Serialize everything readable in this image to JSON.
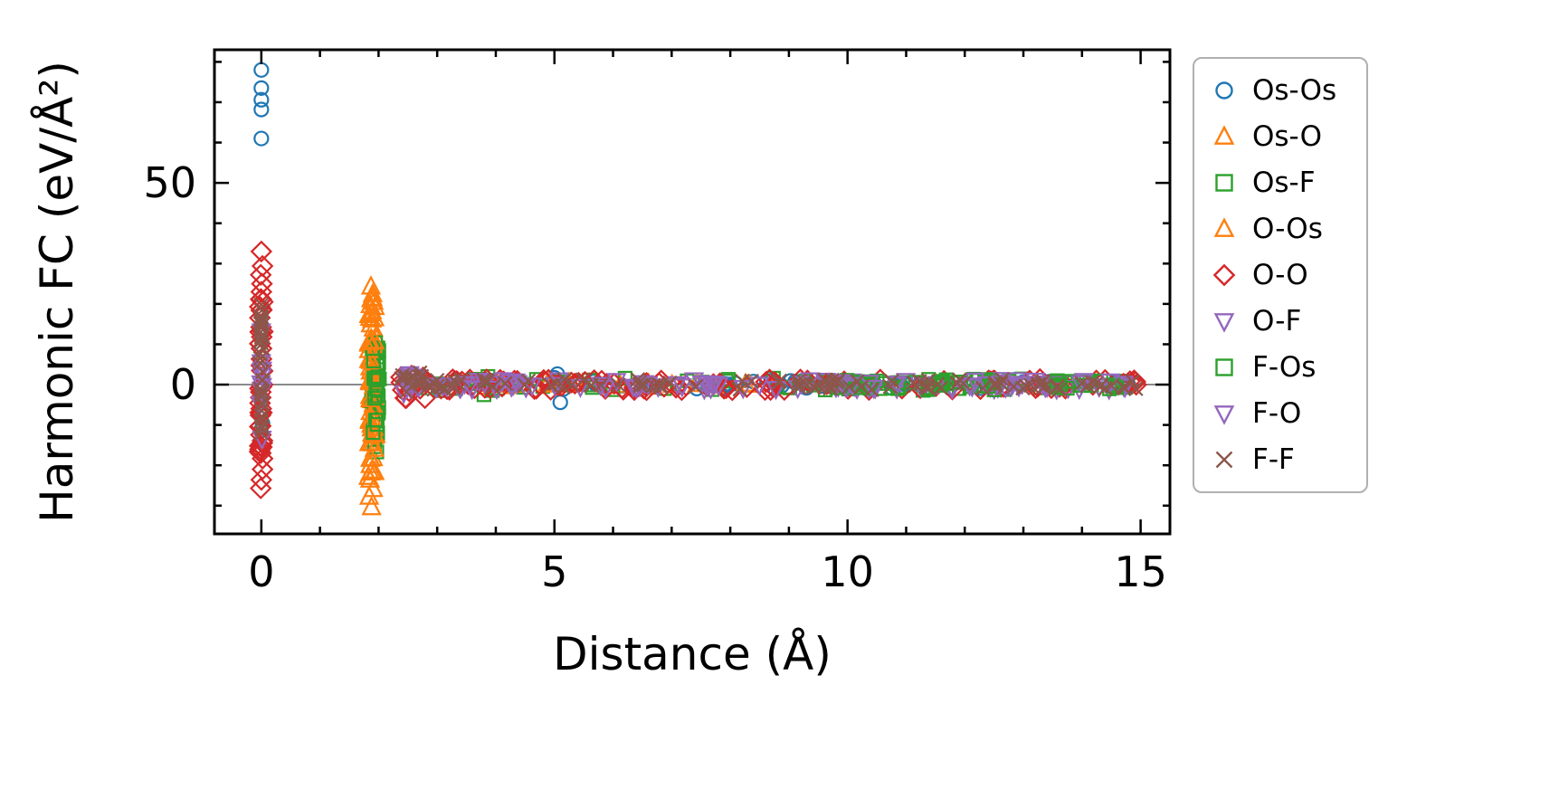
{
  "figure": {
    "background": "#ffffff"
  },
  "chart_data": {
    "type": "scatter",
    "title": "",
    "xlabel": "Distance (Å)",
    "ylabel": "Harmonic FC (eV/Å²)",
    "xlim": [
      -0.8,
      15.5
    ],
    "ylim": [
      -37,
      83
    ],
    "xticks": [
      0,
      5,
      10,
      15
    ],
    "yticks": [
      0,
      50
    ],
    "x_minor_step": 1,
    "y_minor_step": 10,
    "grid": false,
    "zero_line": {
      "y": 0,
      "color": "#8a8a8a"
    },
    "legend_position": "outside-right",
    "series": [
      {
        "name": "Os-Os",
        "marker": "circle",
        "color": "#1f77b4",
        "size": 15,
        "points": [
          [
            0,
            78
          ],
          [
            0,
            73.5
          ],
          [
            0,
            70.6
          ],
          [
            0,
            68.2
          ],
          [
            0,
            61
          ],
          [
            0.02,
            -9.6
          ],
          [
            -0.01,
            -11.4
          ],
          [
            5.05,
            2.6
          ],
          [
            5.1,
            -4.4
          ],
          [
            5.0,
            1.7
          ],
          [
            5.15,
            -1.1
          ],
          [
            14.8,
            -0.6
          ],
          [
            14.55,
            0.4
          ],
          [
            9.3,
            -0.8
          ]
        ],
        "bands": [
          {
            "x0": 4.9,
            "x1": 14.95,
            "y0": -1.1,
            "y1": 1.1,
            "count": 45,
            "seed": 11
          }
        ]
      },
      {
        "name": "Os-O",
        "marker": "triangle-up",
        "color": "#ff7f0e",
        "size": 17,
        "points": [
          [
            1.87,
            24.3
          ],
          [
            1.9,
            22.4
          ],
          [
            1.84,
            -27.8
          ],
          [
            1.88,
            -30.4
          ],
          [
            1.91,
            -25.9
          ]
        ],
        "bands": [
          {
            "x0": 1.82,
            "x1": 1.96,
            "y0": -24,
            "y1": 21,
            "count": 40,
            "seed": 21
          },
          {
            "x0": 3.4,
            "x1": 7.5,
            "y0": -0.7,
            "y1": 0.7,
            "count": 12,
            "seed": 22
          }
        ]
      },
      {
        "name": "Os-F",
        "marker": "square",
        "color": "#2ca02c",
        "size": 14,
        "points": [
          [
            1.95,
            10.4
          ],
          [
            1.99,
            9.1
          ],
          [
            1.93,
            -15.4
          ],
          [
            1.97,
            -16.7
          ]
        ],
        "bands": [
          {
            "x0": 1.88,
            "x1": 2.02,
            "y0": -13,
            "y1": 9,
            "count": 30,
            "seed": 31
          },
          {
            "x0": 2.4,
            "x1": 14.95,
            "y0": -1.6,
            "y1": 1.6,
            "count": 70,
            "seed": 32
          },
          {
            "x0": 3.55,
            "x1": 3.95,
            "y0": -2.6,
            "y1": 2.2,
            "count": 8,
            "seed": 33
          }
        ]
      },
      {
        "name": "O-Os",
        "marker": "triangle-up",
        "color": "#ff7f0e",
        "size": 17,
        "points": [
          [
            1.89,
            18.2
          ],
          [
            1.86,
            -21.8
          ],
          [
            1.92,
            20.5
          ]
        ],
        "bands": [
          {
            "x0": 1.83,
            "x1": 1.95,
            "y0": -20,
            "y1": 23,
            "count": 35,
            "seed": 41
          },
          {
            "x0": 4.0,
            "x1": 9.0,
            "y0": -0.6,
            "y1": 0.6,
            "count": 10,
            "seed": 42
          }
        ]
      },
      {
        "name": "O-O",
        "marker": "diamond",
        "color": "#d62728",
        "size": 17,
        "points": [
          [
            0,
            33
          ],
          [
            0.02,
            29.4
          ],
          [
            -0.01,
            27.2
          ],
          [
            0.01,
            25
          ],
          [
            0,
            23
          ],
          [
            0.02,
            -21
          ],
          [
            0,
            -23.6
          ],
          [
            -0.01,
            -25.7
          ]
        ],
        "bands": [
          {
            "x0": -0.03,
            "x1": 0.03,
            "y0": -19,
            "y1": 22,
            "count": 40,
            "seed": 51
          },
          {
            "x0": 2.38,
            "x1": 2.8,
            "y0": -3.4,
            "y1": 3.4,
            "count": 18,
            "seed": 52
          },
          {
            "x0": 2.5,
            "x1": 14.95,
            "y0": -1.4,
            "y1": 1.4,
            "count": 110,
            "seed": 53
          }
        ]
      },
      {
        "name": "O-F",
        "marker": "triangle-down",
        "color": "#9467bd",
        "size": 17,
        "points": [
          [
            0,
            13.2
          ],
          [
            0.01,
            -13.4
          ]
        ],
        "bands": [
          {
            "x0": -0.02,
            "x1": 0.02,
            "y0": -8,
            "y1": 8,
            "count": 10,
            "seed": 61
          },
          {
            "x0": 2.4,
            "x1": 14.95,
            "y0": -1.2,
            "y1": 1.2,
            "count": 55,
            "seed": 62
          }
        ]
      },
      {
        "name": "F-Os",
        "marker": "square",
        "color": "#2ca02c",
        "size": 14,
        "points": [],
        "bands": [
          {
            "x0": 1.9,
            "x1": 2.0,
            "y0": -12,
            "y1": 8,
            "count": 15,
            "seed": 71
          },
          {
            "x0": 9.8,
            "x1": 12.6,
            "y0": -1.3,
            "y1": 1.3,
            "count": 40,
            "seed": 72
          },
          {
            "x0": 13.5,
            "x1": 14.6,
            "y0": -1.2,
            "y1": 1.2,
            "count": 15,
            "seed": 73
          }
        ]
      },
      {
        "name": "F-O",
        "marker": "triangle-down",
        "color": "#9467bd",
        "size": 17,
        "points": [],
        "bands": [
          {
            "x0": 2.45,
            "x1": 14.95,
            "y0": -1.1,
            "y1": 1.1,
            "count": 55,
            "seed": 81
          },
          {
            "x0": 2.4,
            "x1": 2.7,
            "y0": -3,
            "y1": 3,
            "count": 10,
            "seed": 82
          }
        ]
      },
      {
        "name": "F-F",
        "marker": "x",
        "color": "#8c564b",
        "size": 15,
        "points": [
          [
            0,
            19.8
          ],
          [
            0.01,
            18.4
          ],
          [
            -0.01,
            16.8
          ],
          [
            0,
            -12
          ]
        ],
        "bands": [
          {
            "x0": -0.02,
            "x1": 0.02,
            "y0": -11,
            "y1": 17,
            "count": 35,
            "seed": 91
          },
          {
            "x0": 2.38,
            "x1": 2.75,
            "y0": -3,
            "y1": 3.2,
            "count": 15,
            "seed": 92
          },
          {
            "x0": 2.5,
            "x1": 14.95,
            "y0": -1.3,
            "y1": 1.3,
            "count": 110,
            "seed": 93
          }
        ]
      }
    ]
  }
}
